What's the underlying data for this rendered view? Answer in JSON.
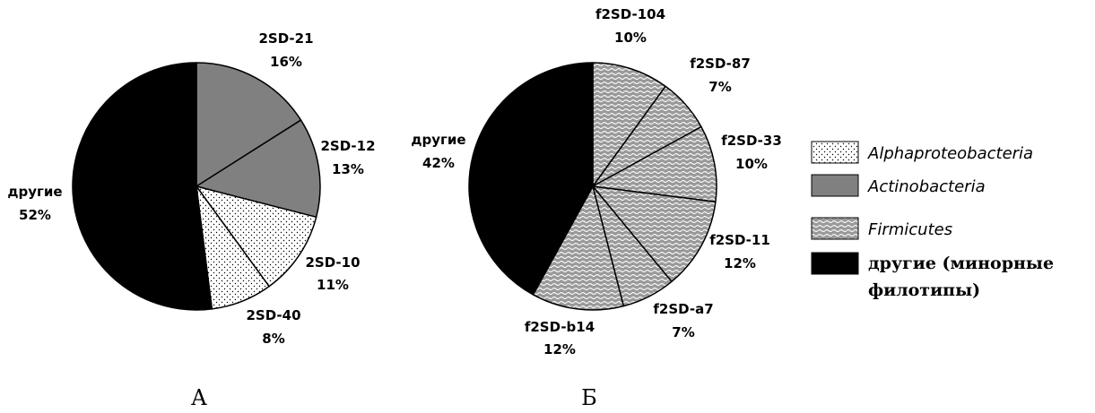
{
  "chart_data": [
    {
      "type": "pie",
      "panel_label": "А",
      "slices": [
        {
          "label": "2SD-21",
          "value": 16,
          "value_label": "16%",
          "group": "actino"
        },
        {
          "label": "2SD-12",
          "value": 13,
          "value_label": "13%",
          "group": "actino"
        },
        {
          "label": "2SD-10",
          "value": 11,
          "value_label": "11%",
          "group": "alpha"
        },
        {
          "label": "2SD-40",
          "value": 8,
          "value_label": "8%",
          "group": "alpha"
        },
        {
          "label": "другие",
          "value": 52,
          "value_label": "52%",
          "group": "other"
        }
      ]
    },
    {
      "type": "pie",
      "panel_label": "Б",
      "slices": [
        {
          "label": "f2SD-104",
          "value": 10,
          "value_label": "10%",
          "group": "firm"
        },
        {
          "label": "f2SD-87",
          "value": 7,
          "value_label": "7%",
          "group": "firm"
        },
        {
          "label": "f2SD-33",
          "value": 10,
          "value_label": "10%",
          "group": "firm"
        },
        {
          "label": "f2SD-11",
          "value": 12,
          "value_label": "12%",
          "group": "firm"
        },
        {
          "label": "f2SD-a7",
          "value": 7,
          "value_label": "7%",
          "group": "firm"
        },
        {
          "label": "f2SD-b14",
          "value": 12,
          "value_label": "12%",
          "group": "firm"
        },
        {
          "label": "другие",
          "value": 42,
          "value_label": "42%",
          "group": "other"
        }
      ]
    }
  ],
  "legend": [
    {
      "key": "alpha",
      "label": "Alphaproteobacteria",
      "fill": "dotted",
      "style": "italic"
    },
    {
      "key": "actino",
      "label": "Actinobacteria",
      "fill": "#808080",
      "style": "italic"
    },
    {
      "key": "firm",
      "label": "Firmicutes",
      "fill": "wavy",
      "style": "italic"
    },
    {
      "key": "other",
      "label": "другие (минорные филотипы)",
      "label_lines": [
        "другие (минорные",
        "филотипы)"
      ],
      "fill": "#000000",
      "style": "bold"
    }
  ],
  "colors": {
    "actinobacteria": "#808080",
    "other": "#000000",
    "outline": "#000000"
  }
}
